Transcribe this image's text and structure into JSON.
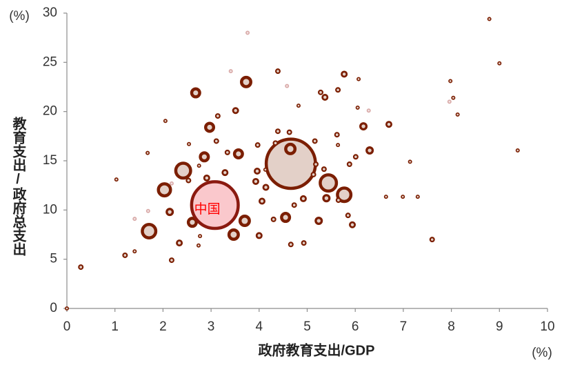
{
  "chart_data": {
    "type": "scatter",
    "xlabel": "政府教育支出/GDP",
    "ylabel": "教育支出/政府总支出",
    "x_unit": "(%)",
    "y_unit": "(%)",
    "xlim": [
      0,
      10
    ],
    "ylim": [
      0,
      30
    ],
    "xticks": [
      0,
      1,
      2,
      3,
      4,
      5,
      6,
      7,
      8,
      9,
      10
    ],
    "yticks": [
      0,
      5,
      10,
      15,
      20,
      25,
      30
    ],
    "series": [
      {
        "color": "#7b1e00",
        "fill": "#e3d0c8",
        "x": [
          4.66,
          5.44,
          5.77,
          2.42,
          2.03,
          1.71,
          2.68,
          2.97,
          2.86,
          3.57,
          4.65,
          3.47,
          3.7,
          2.61,
          4.55,
          5.24,
          6.17,
          6.3,
          5.4,
          2.14,
          3.0,
          3.73,
          5.77,
          3.51,
          5.37,
          6.7,
          5.94,
          2.34,
          3.96,
          3.29,
          4.0,
          4.39,
          4.63,
          4.39,
          4.92,
          4.66,
          4.06,
          4.14,
          3.93,
          2.53,
          2.91,
          2.18,
          1.21,
          0.29,
          7.6,
          0.0,
          8.13,
          9.0,
          8.79,
          9.38,
          7.98,
          8.04,
          7.3,
          7.14,
          6.99,
          6.64,
          6.05,
          6.07,
          1.03,
          1.68,
          2.05,
          1.41,
          2.74,
          4.93,
          5.16,
          5.62,
          5.28,
          5.64,
          4.82,
          4.34,
          3.97,
          5.18,
          5.35,
          6.01,
          5.64,
          4.13,
          3.14,
          3.11,
          3.34,
          2.75,
          2.54,
          2.7,
          2.77,
          3.16,
          4.73,
          4.3,
          5.85,
          5.65,
          5.13,
          5.88
        ],
        "values": [
          14.7,
          12.75,
          11.55,
          14.0,
          12.05,
          7.85,
          21.9,
          18.4,
          15.4,
          15.7,
          16.2,
          7.5,
          8.9,
          8.75,
          9.25,
          8.9,
          18.5,
          16.05,
          11.2,
          9.8,
          11.7,
          23.0,
          23.8,
          20.1,
          21.45,
          18.7,
          8.5,
          6.65,
          13.95,
          13.8,
          7.4,
          18.0,
          17.9,
          24.1,
          11.15,
          6.5,
          10.9,
          12.3,
          12.9,
          13.0,
          13.25,
          4.9,
          5.4,
          4.2,
          7.0,
          0.0,
          19.7,
          24.9,
          29.4,
          16.05,
          23.1,
          21.4,
          11.35,
          14.9,
          11.35,
          11.35,
          20.4,
          23.3,
          13.1,
          15.8,
          19.05,
          5.8,
          6.4,
          6.65,
          17.0,
          17.65,
          21.95,
          22.2,
          20.6,
          16.8,
          16.6,
          14.65,
          14.15,
          15.4,
          16.6,
          14.1,
          19.55,
          17.0,
          15.85,
          14.5,
          16.7,
          11.0,
          7.35,
          8.4,
          10.5,
          9.05,
          9.45,
          11.0,
          13.6,
          14.65
        ],
        "sizes": [
          1440,
          196,
          144,
          169,
          121,
          144,
          64,
          64,
          64,
          64,
          81,
          81,
          81,
          64,
          64,
          36,
          36,
          36,
          36,
          36,
          36,
          81,
          25,
          25,
          25,
          25,
          25,
          25,
          25,
          25,
          25,
          16,
          16,
          16,
          25,
          16,
          25,
          25,
          25,
          16,
          25,
          16,
          16,
          16,
          16,
          9,
          9,
          9,
          9,
          9,
          9,
          9,
          9,
          9,
          9,
          9,
          9,
          9,
          9,
          9,
          9,
          9,
          9,
          16,
          16,
          16,
          16,
          16,
          9,
          16,
          16,
          16,
          16,
          16,
          9,
          9,
          16,
          16,
          16,
          9,
          9,
          16,
          9,
          16,
          16,
          16,
          16,
          16,
          16,
          16
        ]
      },
      {
        "color": "#d9aaa8",
        "fill": "#f3e3e3",
        "x": [
          3.76,
          3.41,
          4.58,
          7.96,
          6.28,
          1.69,
          1.41,
          2.18
        ],
        "values": [
          28.0,
          24.1,
          22.6,
          21.0,
          20.1,
          9.9,
          9.1,
          12.7
        ],
        "sizes": [
          9,
          9,
          9,
          9,
          9,
          9,
          9,
          9
        ]
      },
      {
        "color": "#8b1a10",
        "fill": "#fac8cc",
        "label": "中国",
        "label_color": "#ff0000",
        "x": [
          3.08
        ],
        "values": [
          10.5
        ],
        "sizes": [
          1300
        ]
      }
    ]
  }
}
